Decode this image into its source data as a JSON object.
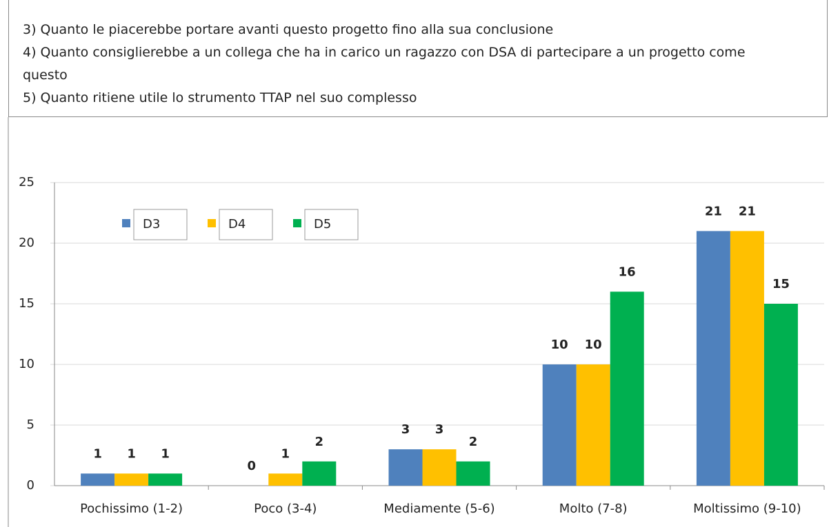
{
  "chart_data": {
    "type": "bar",
    "notes": [
      "3) Quanto le piacerebbe portare avanti questo progetto fino alla sua conclusione",
      "4) Quanto consiglierebbe a un collega che ha in carico un ragazzo con DSA di partecipare a un progetto come questo",
      "5) Quanto ritiene utile lo strumento TTAP nel suo complesso"
    ],
    "categories": [
      "Pochissimo (1-2)",
      "Poco (3-4)",
      "Mediamente (5-6)",
      "Molto (7-8)",
      "Moltissimo (9-10)"
    ],
    "series": [
      {
        "name": "D3",
        "color": "#4f81bd",
        "values": [
          1,
          0,
          3,
          10,
          21
        ]
      },
      {
        "name": "D4",
        "color": "#ffc000",
        "values": [
          1,
          1,
          3,
          10,
          21
        ]
      },
      {
        "name": "D5",
        "color": "#00b050",
        "values": [
          1,
          2,
          2,
          16,
          15
        ]
      }
    ],
    "ylim": [
      0,
      25
    ],
    "yticks": [
      0,
      5,
      10,
      15,
      20,
      25
    ],
    "grid": true,
    "legend": "top-left"
  }
}
